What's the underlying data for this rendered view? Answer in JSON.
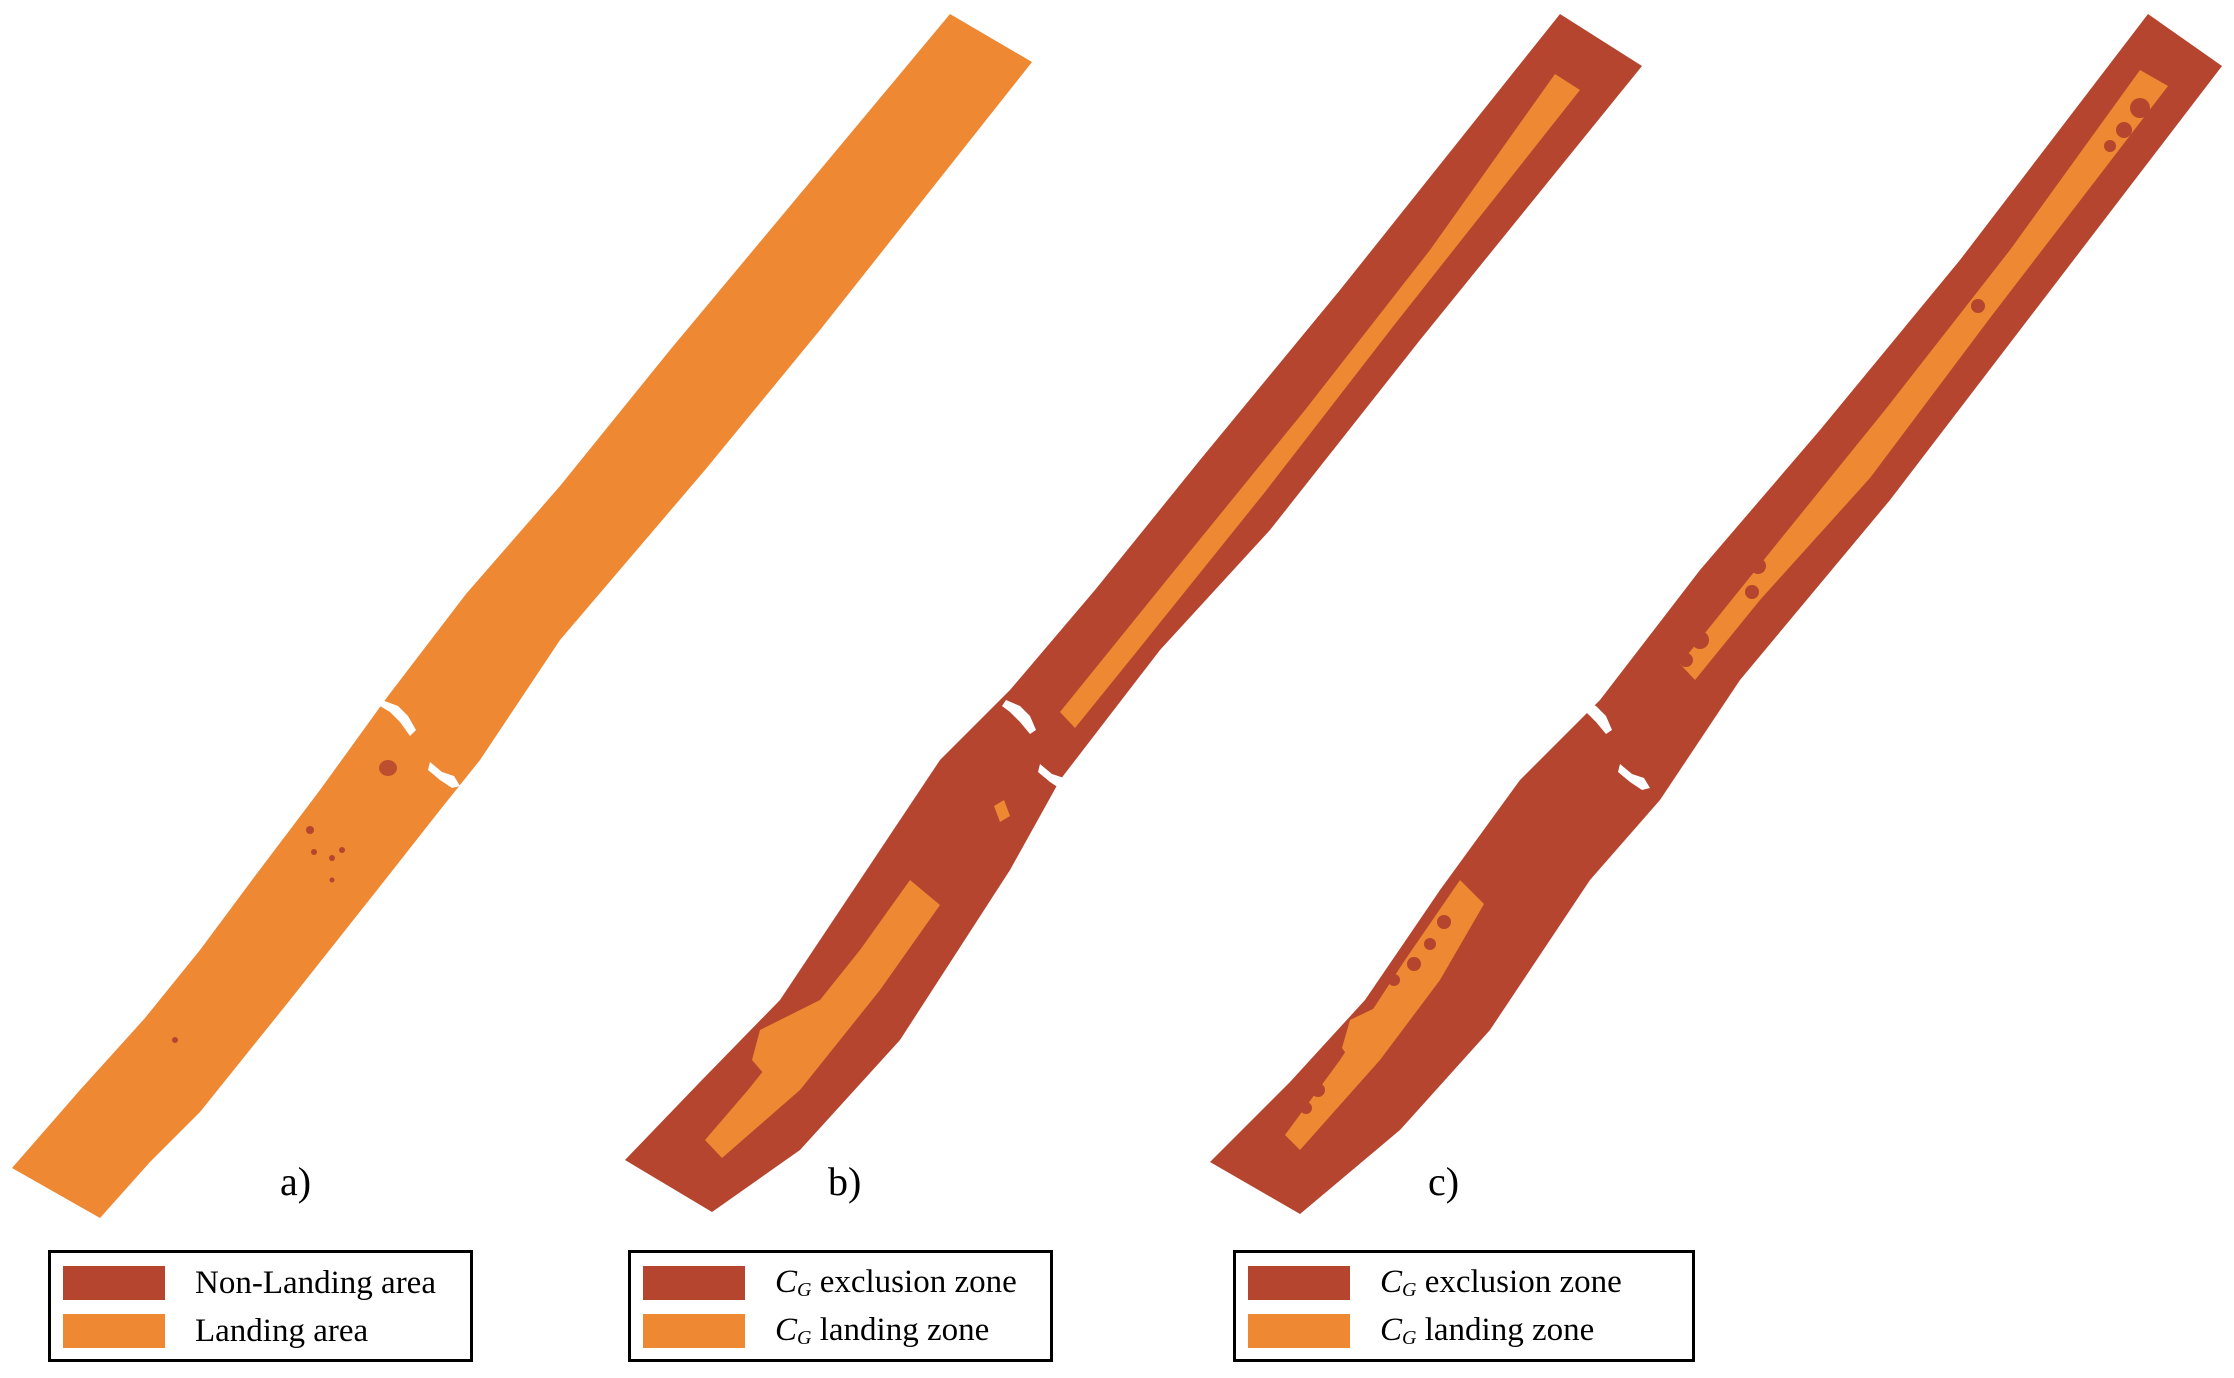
{
  "colors": {
    "non_landing": "#B5452E",
    "landing": "#EE8833",
    "background": "#FFFFFF"
  },
  "panels": [
    {
      "id": "a",
      "label": "a)",
      "legend": [
        {
          "text": "Non-Landing area",
          "color_key": "non_landing"
        },
        {
          "text": "Landing area",
          "color_key": "landing"
        }
      ]
    },
    {
      "id": "b",
      "label": "b)",
      "legend": [
        {
          "symbol": "C",
          "subscript": "G",
          "text": " exclusion zone",
          "color_key": "non_landing"
        },
        {
          "symbol": "C",
          "subscript": "G",
          "text": " landing zone",
          "color_key": "landing"
        }
      ]
    },
    {
      "id": "c",
      "label": "c)",
      "legend": [
        {
          "symbol": "C",
          "subscript": "G",
          "text": " exclusion zone",
          "color_key": "non_landing"
        },
        {
          "symbol": "C",
          "subscript": "G",
          "text": " landing zone",
          "color_key": "landing"
        }
      ]
    }
  ]
}
